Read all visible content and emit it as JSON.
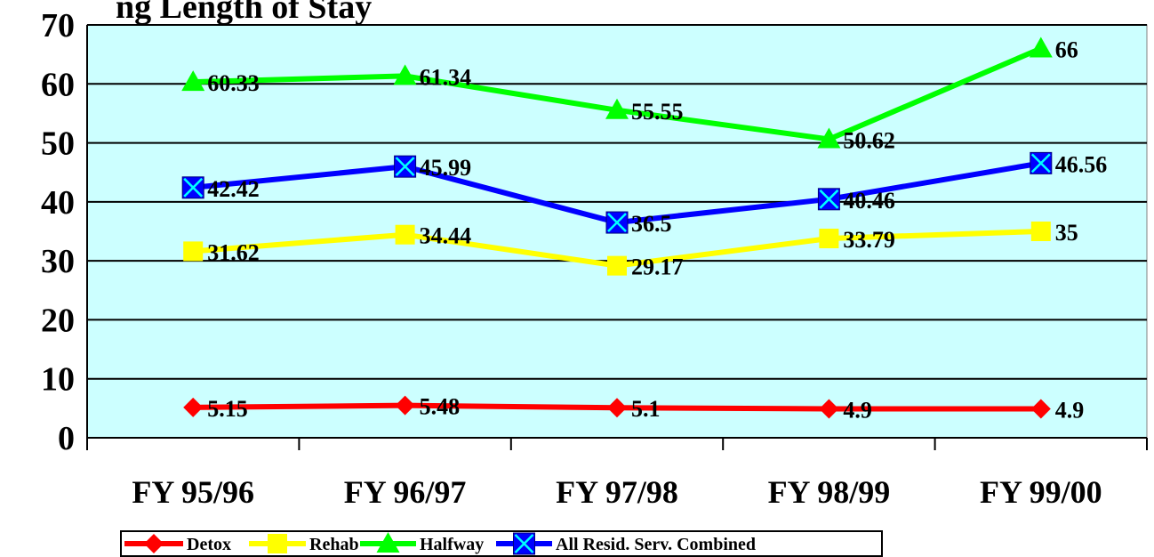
{
  "chart_data": {
    "type": "line",
    "title": "ng Length of Stay",
    "categories": [
      "FY 95/96",
      "FY 96/97",
      "FY 97/98",
      "FY 98/99",
      "FY 99/00"
    ],
    "series": [
      {
        "name": "Detox",
        "color": "#ff0000",
        "marker": "diamond",
        "values": [
          5.15,
          5.48,
          5.1,
          4.9,
          4.9
        ]
      },
      {
        "name": "Rehab",
        "color": "#ffff00",
        "marker": "square",
        "values": [
          31.62,
          34.44,
          29.17,
          33.79,
          35
        ]
      },
      {
        "name": "Halfway",
        "color": "#00ff00",
        "marker": "triangle",
        "values": [
          60.33,
          61.34,
          55.55,
          50.62,
          66
        ]
      },
      {
        "name": "All Resid. Serv. Combined",
        "color": "#0000ff",
        "marker": "x-square",
        "values": [
          42.42,
          45.99,
          36.5,
          40.46,
          46.56
        ]
      }
    ],
    "ylim": [
      0,
      70
    ],
    "yticks": [
      0,
      10,
      20,
      30,
      40,
      50,
      60,
      70
    ],
    "grid": true,
    "legend": "bottom"
  }
}
